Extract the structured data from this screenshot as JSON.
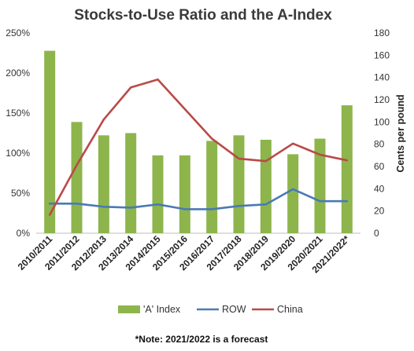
{
  "chart_data": {
    "type": "bar",
    "title": "Stocks-to-Use Ratio and the A-Index",
    "categories": [
      "2010/2011",
      "2011/2012",
      "2012/2013",
      "2013/2014",
      "2014/2015",
      "2015/2016",
      "2016/2017",
      "2017/2018",
      "2018/2019",
      "2019/2020",
      "2020/2021",
      "2021/2022*"
    ],
    "series": [
      {
        "name": "'A' Index",
        "kind": "bar",
        "axis": "right",
        "color": "#8db54c",
        "values": [
          164,
          100,
          88,
          90,
          70,
          70,
          83,
          88,
          84,
          71,
          85,
          115
        ]
      },
      {
        "name": "ROW",
        "kind": "line",
        "axis": "left",
        "color": "#4a7ab5",
        "values": [
          37,
          37,
          33,
          32,
          36,
          30,
          30,
          34,
          36,
          55,
          40,
          40
        ]
      },
      {
        "name": "China",
        "kind": "line",
        "axis": "left",
        "color": "#b94a48",
        "values": [
          23,
          85,
          142,
          182,
          192,
          155,
          118,
          93,
          90,
          112,
          98,
          91
        ]
      }
    ],
    "y_left": {
      "min": 0,
      "max": 250,
      "ticks": [
        "0%",
        "50%",
        "100%",
        "150%",
        "200%",
        "250%"
      ]
    },
    "y_right": {
      "min": 0,
      "max": 180,
      "ticks": [
        "0",
        "20",
        "40",
        "60",
        "80",
        "100",
        "120",
        "140",
        "160",
        "180"
      ],
      "label": "Cents per pound"
    },
    "grid": false,
    "legend_position": "bottom",
    "note": "*Note: 2021/2022 is a forecast"
  }
}
